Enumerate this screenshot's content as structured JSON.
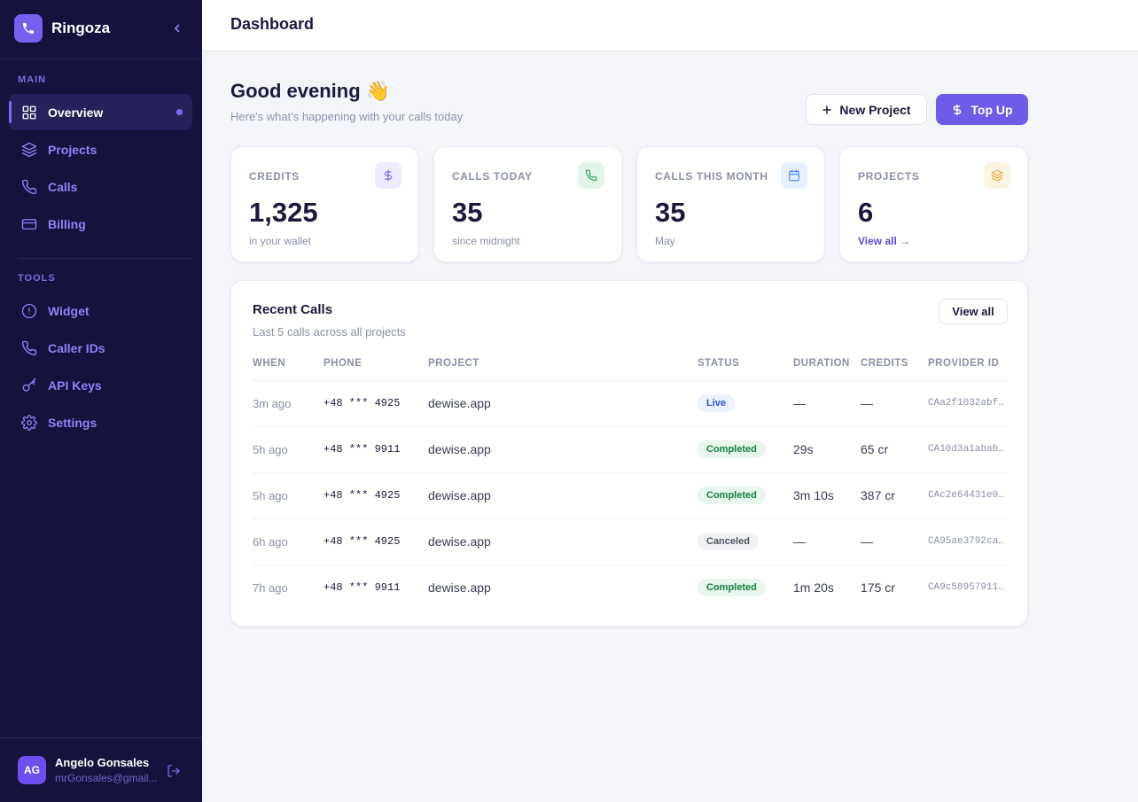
{
  "sidebar": {
    "brand": "Ringoza",
    "sections": [
      {
        "title": "MAIN",
        "items": [
          {
            "label": "Overview",
            "active": true
          },
          {
            "label": "Projects"
          },
          {
            "label": "Calls"
          },
          {
            "label": "Billing"
          }
        ]
      },
      {
        "title": "TOOLS",
        "items": [
          {
            "label": "Widget"
          },
          {
            "label": "Caller IDs"
          },
          {
            "label": "API Keys"
          },
          {
            "label": "Settings"
          }
        ]
      }
    ],
    "user": {
      "initials": "AG",
      "name": "Angelo Gonsales",
      "email": "mrGonsales@gmail..."
    }
  },
  "header": {
    "title": "Dashboard"
  },
  "greeting": {
    "title": "Good evening 👋",
    "subtitle": "Here's what's happening with your calls today"
  },
  "actions": {
    "new_project": "New Project",
    "top_up": "Top Up"
  },
  "stats": [
    {
      "label": "CREDITS",
      "value": "1,325",
      "sub": "in your wallet",
      "color": "#6d5ce8"
    },
    {
      "label": "CALLS TODAY",
      "value": "35",
      "sub": "since midnight",
      "color": "#16a34a"
    },
    {
      "label": "CALLS THIS MONTH",
      "value": "35",
      "sub": "May",
      "color": "#3b82f6"
    },
    {
      "label": "PROJECTS",
      "value": "6",
      "sub": "View all →",
      "color": "#e8a21a",
      "link": true
    }
  ],
  "recent_calls": {
    "title": "Recent Calls",
    "subtitle": "Last 5 calls across all projects",
    "view_all": "View all",
    "columns": [
      "WHEN",
      "PHONE",
      "PROJECT",
      "STATUS",
      "DURATION",
      "CREDITS",
      "PROVIDER ID"
    ],
    "rows": [
      {
        "when": "3m ago",
        "phone": "+48 *** 4925",
        "project": "dewise.app",
        "status": "Live",
        "status_color": "#2f55d4",
        "status_bg": "#edf2ff",
        "duration": "—",
        "credits": "—",
        "provider_id": "CAa2f1032abf…"
      },
      {
        "when": "5h ago",
        "phone": "+48 *** 9911",
        "project": "dewise.app",
        "status": "Completed",
        "status_color": "#15803d",
        "status_bg": "#e7f7ed",
        "duration": "29s",
        "credits": "65 cr",
        "provider_id": "CA10d3a1abab…"
      },
      {
        "when": "5h ago",
        "phone": "+48 *** 4925",
        "project": "dewise.app",
        "status": "Completed",
        "status_color": "#15803d",
        "status_bg": "#e7f7ed",
        "duration": "3m 10s",
        "credits": "387 cr",
        "provider_id": "CAc2e64431e0…"
      },
      {
        "when": "6h ago",
        "phone": "+48 *** 4925",
        "project": "dewise.app",
        "status": "Canceled",
        "status_color": "#4b5563",
        "status_bg": "#f1f2f6",
        "duration": "—",
        "credits": "—",
        "provider_id": "CA95ae3792ca…"
      },
      {
        "when": "7h ago",
        "phone": "+48 *** 9911",
        "project": "dewise.app",
        "status": "Completed",
        "status_color": "#15803d",
        "status_bg": "#e7f7ed",
        "duration": "1m 20s",
        "credits": "175 cr",
        "provider_id": "CA9c58957911…"
      }
    ]
  }
}
